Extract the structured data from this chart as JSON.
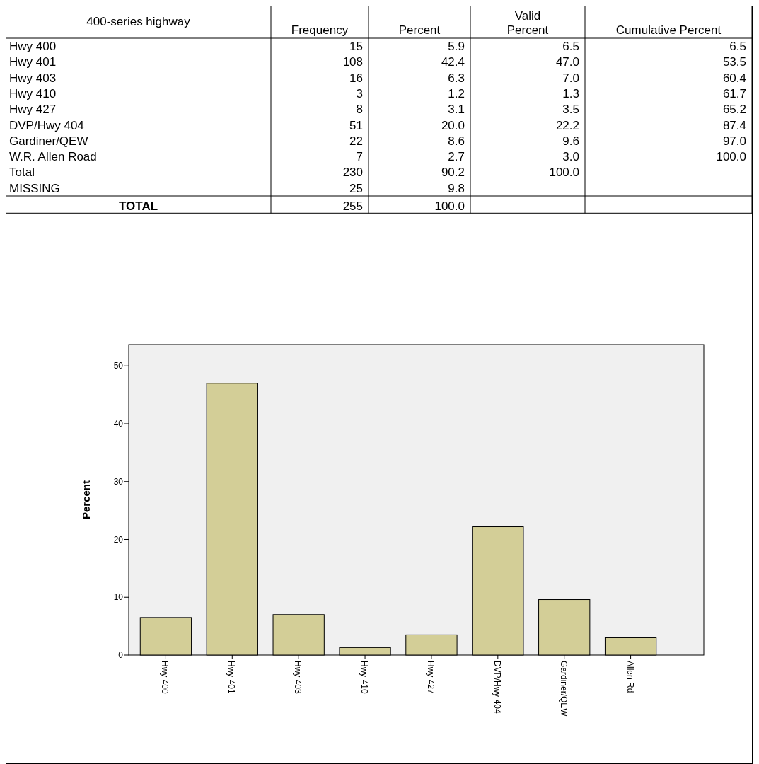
{
  "chart_data": [
    {
      "type": "other",
      "title": "400-series highway",
      "categories": [
        "Hwy 400",
        "Hwy 401",
        "Hwy 403",
        "Hwy 410",
        "Hwy 427",
        "DVP/Hwy 404",
        "Gardiner/QEW",
        "W.R. Allen Road",
        "Total",
        "MISSING",
        "TOTAL"
      ],
      "series": [
        {
          "name": "Frequency",
          "values": [
            15,
            108,
            16,
            3,
            8,
            51,
            22,
            7,
            230,
            25,
            255
          ],
          "value_labels": [
            "15",
            "108",
            "16",
            "3",
            "8",
            "51",
            "22",
            "7",
            "230",
            "25",
            "255"
          ]
        },
        {
          "name": "Percent",
          "values": [
            5.9,
            42.4,
            6.3,
            1.2,
            3.1,
            20.0,
            8.6,
            2.7,
            90.2,
            9.8,
            100.0
          ],
          "value_labels": [
            "5.9",
            "42.4",
            "6.3",
            "1.2",
            "3.1",
            "20.0",
            "8.6",
            "2.7",
            "90.2",
            "9.8",
            "100.0"
          ]
        },
        {
          "name": "Valid Percent",
          "values": [
            6.5,
            47.0,
            7.0,
            1.3,
            3.5,
            22.2,
            9.6,
            3.0,
            100.0,
            null,
            null
          ],
          "value_labels": [
            "6.5",
            "47.0",
            "7.0",
            "1.3",
            "3.5",
            "22.2",
            "9.6",
            "3.0",
            "100.0",
            null,
            null
          ]
        },
        {
          "name": "Cumulative Percent",
          "values": [
            6.5,
            53.5,
            60.4,
            61.7,
            65.2,
            87.4,
            97.0,
            100.0,
            null,
            null,
            null
          ],
          "value_labels": [
            "6.5",
            "53.5",
            "60.4",
            "61.7",
            "65.2",
            "87.4",
            "97.0",
            "100.0",
            null,
            null,
            null
          ]
        }
      ]
    },
    {
      "type": "bar",
      "categories": [
        "Hwy 400",
        "Hwy 401",
        "Hwy 403",
        "Hwy 410",
        "Hwy 427",
        "DVP/Hwy 404",
        "Gardiner/QEW",
        "Allen Rd"
      ],
      "values": [
        6.5,
        47.0,
        7.0,
        1.3,
        3.5,
        22.2,
        9.6,
        3.0
      ],
      "color": "#d3ce97",
      "ylabel": "Percent",
      "ylim": [
        0,
        53.7
      ],
      "yticks": [
        0,
        10,
        20,
        30,
        40,
        50
      ],
      "grid": false
    }
  ]
}
